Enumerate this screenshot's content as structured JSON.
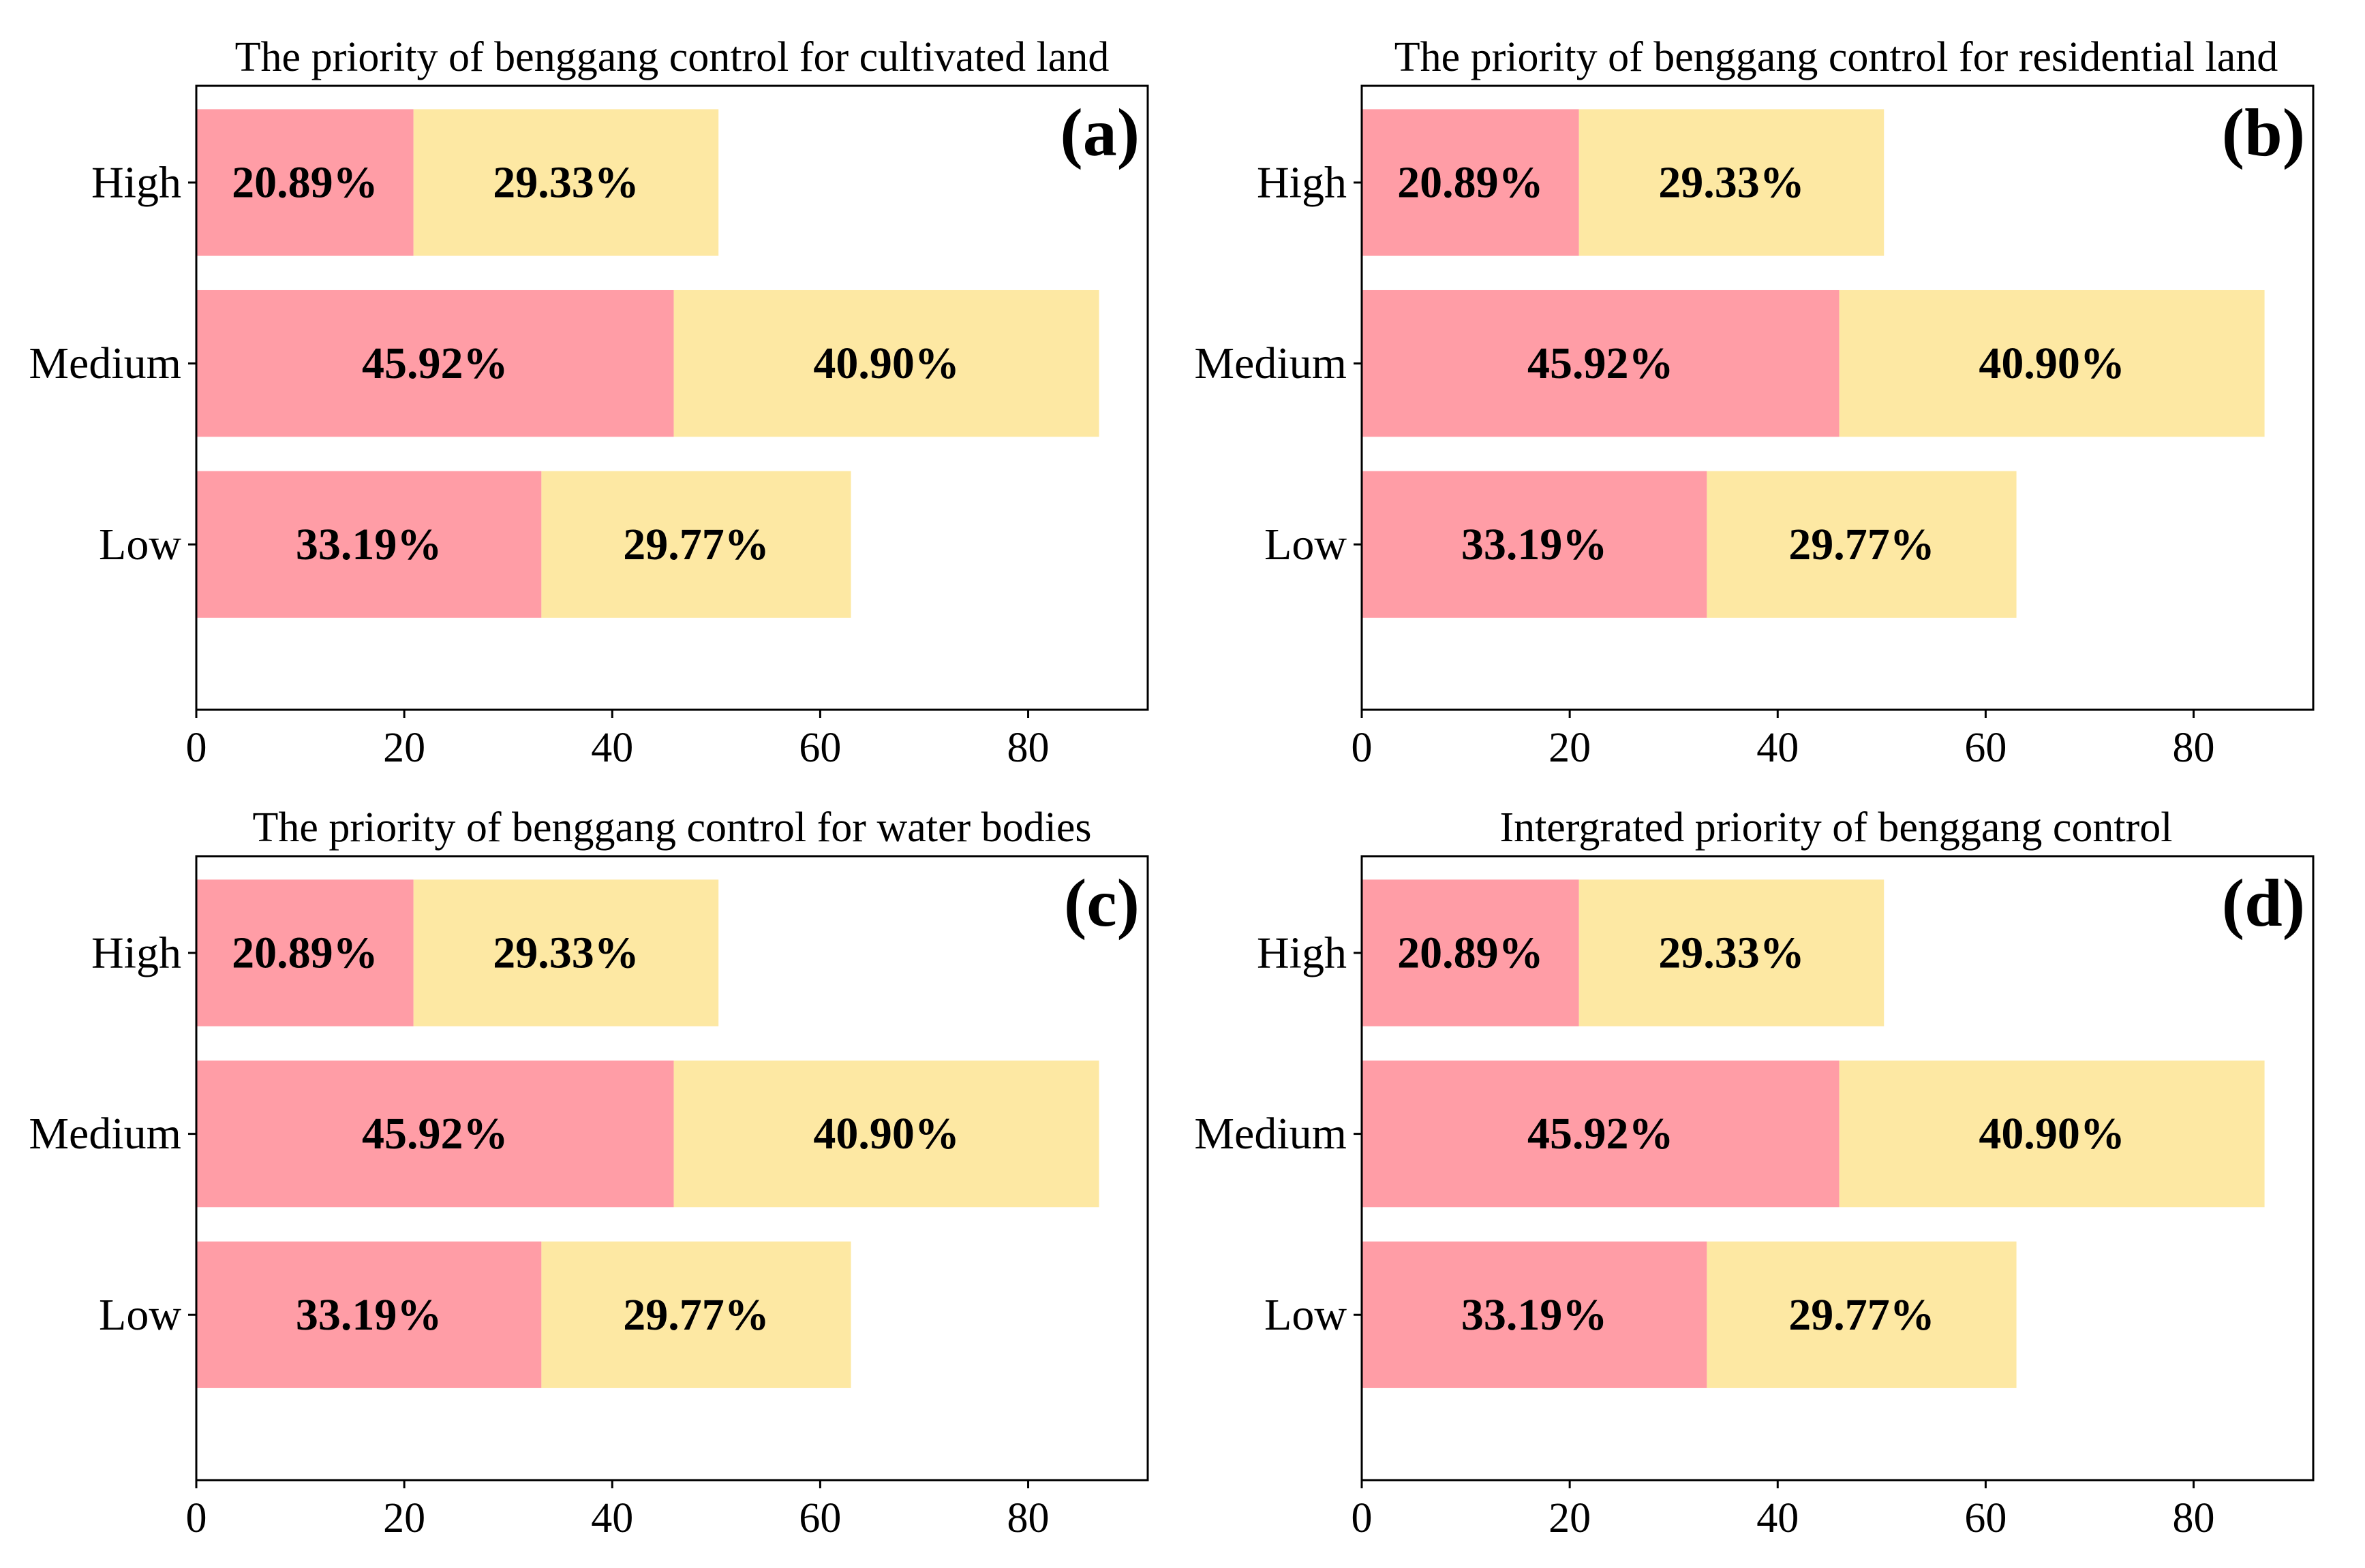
{
  "chart_data": [
    {
      "type": "bar",
      "orientation": "horizontal",
      "stacked": true,
      "title": "The priority of benggang control for cultivated land",
      "panel_label": "(a)",
      "categories": [
        "High",
        "Medium",
        "Low"
      ],
      "series": [
        {
          "name": "segment-1",
          "values": [
            20.89,
            45.92,
            33.19
          ],
          "labels": [
            "20.89%",
            "45.92%",
            "33.19%"
          ],
          "color": "#ff9da6"
        },
        {
          "name": "segment-2",
          "values": [
            29.33,
            40.9,
            29.77
          ],
          "labels": [
            "29.33%",
            "40.90%",
            "29.77%"
          ],
          "color": "#fde8a3"
        }
      ],
      "xlim": [
        0,
        91.5
      ],
      "xticks": [
        0,
        20,
        40,
        60,
        80
      ],
      "xlabel": "",
      "ylabel": "",
      "grid": false
    },
    {
      "type": "bar",
      "orientation": "horizontal",
      "stacked": true,
      "title": "The priority of benggang control  for residential land",
      "panel_label": "(b)",
      "categories": [
        "High",
        "Medium",
        "Low"
      ],
      "series": [
        {
          "name": "segment-1",
          "values": [
            20.89,
            45.92,
            33.19
          ],
          "labels": [
            "20.89%",
            "45.92%",
            "33.19%"
          ],
          "color": "#ff9da6"
        },
        {
          "name": "segment-2",
          "values": [
            29.33,
            40.9,
            29.77
          ],
          "labels": [
            "29.33%",
            "40.90%",
            "29.77%"
          ],
          "color": "#fde8a3"
        }
      ],
      "xlim": [
        0,
        91.5
      ],
      "xticks": [
        0,
        20,
        40,
        60,
        80
      ],
      "xlabel": "",
      "ylabel": "",
      "grid": false
    },
    {
      "type": "bar",
      "orientation": "horizontal",
      "stacked": true,
      "title": "The priority of benggang control  for water bodies",
      "panel_label": "(c)",
      "categories": [
        "High",
        "Medium",
        "Low"
      ],
      "series": [
        {
          "name": "segment-1",
          "values": [
            20.89,
            45.92,
            33.19
          ],
          "labels": [
            "20.89%",
            "45.92%",
            "33.19%"
          ],
          "color": "#ff9da6"
        },
        {
          "name": "segment-2",
          "values": [
            29.33,
            40.9,
            29.77
          ],
          "labels": [
            "29.33%",
            "40.90%",
            "29.77%"
          ],
          "color": "#fde8a3"
        }
      ],
      "xlim": [
        0,
        91.5
      ],
      "xticks": [
        0,
        20,
        40,
        60,
        80
      ],
      "xlabel": "",
      "ylabel": "",
      "grid": false
    },
    {
      "type": "bar",
      "orientation": "horizontal",
      "stacked": true,
      "title": "Intergrated  priority of benggang control",
      "panel_label": "(d)",
      "categories": [
        "High",
        "Medium",
        "Low"
      ],
      "series": [
        {
          "name": "segment-1",
          "values": [
            20.89,
            45.92,
            33.19
          ],
          "labels": [
            "20.89%",
            "45.92%",
            "33.19%"
          ],
          "color": "#ff9da6"
        },
        {
          "name": "segment-2",
          "values": [
            29.33,
            40.9,
            29.77
          ],
          "labels": [
            "29.33%",
            "40.90%",
            "29.77%"
          ],
          "color": "#fde8a3"
        }
      ],
      "xlim": [
        0,
        91.5
      ],
      "xticks": [
        0,
        20,
        40,
        60,
        80
      ],
      "xlabel": "",
      "ylabel": "",
      "grid": false
    }
  ]
}
